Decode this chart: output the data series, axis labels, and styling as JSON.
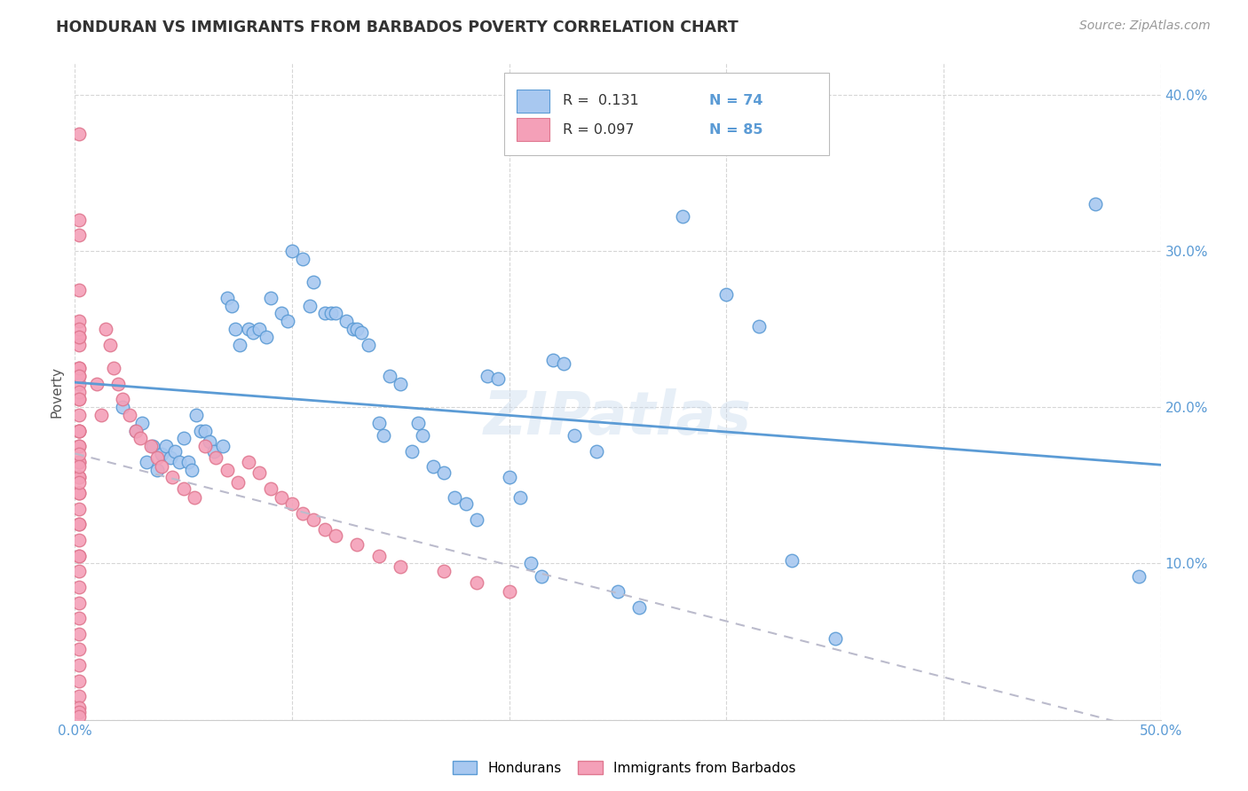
{
  "title": "HONDURAN VS IMMIGRANTS FROM BARBADOS POVERTY CORRELATION CHART",
  "source": "Source: ZipAtlas.com",
  "ylabel": "Poverty",
  "xlim": [
    0.0,
    0.5
  ],
  "ylim": [
    0.0,
    0.42
  ],
  "xticks": [
    0.0,
    0.1,
    0.2,
    0.3,
    0.4,
    0.5
  ],
  "yticks": [
    0.0,
    0.1,
    0.2,
    0.3,
    0.4
  ],
  "color_honduran_fill": "#a8c8f0",
  "color_honduran_edge": "#5b9bd5",
  "color_barbados_fill": "#f4a0b8",
  "color_barbados_edge": "#e07890",
  "color_line_honduran": "#5b9bd5",
  "color_line_barbados": "#ccaabb",
  "color_tick_labels": "#5b9bd5",
  "watermark": "ZIPatlas",
  "legend_r1": "R =  0.131",
  "legend_n1": "N = 74",
  "legend_r2": "R = 0.097",
  "legend_n2": "N = 85",
  "hon_x": [
    0.022,
    0.028,
    0.031,
    0.033,
    0.036,
    0.038,
    0.04,
    0.042,
    0.044,
    0.046,
    0.048,
    0.05,
    0.052,
    0.054,
    0.056,
    0.058,
    0.06,
    0.062,
    0.064,
    0.068,
    0.07,
    0.072,
    0.074,
    0.076,
    0.08,
    0.082,
    0.085,
    0.088,
    0.09,
    0.095,
    0.098,
    0.1,
    0.105,
    0.108,
    0.11,
    0.115,
    0.118,
    0.12,
    0.125,
    0.128,
    0.13,
    0.132,
    0.135,
    0.14,
    0.142,
    0.145,
    0.15,
    0.155,
    0.158,
    0.16,
    0.165,
    0.17,
    0.175,
    0.18,
    0.185,
    0.19,
    0.195,
    0.2,
    0.205,
    0.21,
    0.215,
    0.22,
    0.225,
    0.23,
    0.24,
    0.25,
    0.26,
    0.28,
    0.3,
    0.315,
    0.33,
    0.35,
    0.47,
    0.49
  ],
  "hon_y": [
    0.2,
    0.185,
    0.19,
    0.165,
    0.175,
    0.16,
    0.17,
    0.175,
    0.168,
    0.172,
    0.165,
    0.18,
    0.165,
    0.16,
    0.195,
    0.185,
    0.185,
    0.178,
    0.172,
    0.175,
    0.27,
    0.265,
    0.25,
    0.24,
    0.25,
    0.248,
    0.25,
    0.245,
    0.27,
    0.26,
    0.255,
    0.3,
    0.295,
    0.265,
    0.28,
    0.26,
    0.26,
    0.26,
    0.255,
    0.25,
    0.25,
    0.248,
    0.24,
    0.19,
    0.182,
    0.22,
    0.215,
    0.172,
    0.19,
    0.182,
    0.162,
    0.158,
    0.142,
    0.138,
    0.128,
    0.22,
    0.218,
    0.155,
    0.142,
    0.1,
    0.092,
    0.23,
    0.228,
    0.182,
    0.172,
    0.082,
    0.072,
    0.322,
    0.272,
    0.252,
    0.102,
    0.052,
    0.33,
    0.092
  ],
  "bar_x": [
    0.002,
    0.002,
    0.002,
    0.002,
    0.002,
    0.002,
    0.002,
    0.002,
    0.002,
    0.002,
    0.002,
    0.002,
    0.002,
    0.002,
    0.002,
    0.002,
    0.002,
    0.002,
    0.002,
    0.002,
    0.002,
    0.002,
    0.002,
    0.002,
    0.002,
    0.002,
    0.002,
    0.002,
    0.002,
    0.002,
    0.002,
    0.002,
    0.002,
    0.002,
    0.002,
    0.002,
    0.002,
    0.002,
    0.002,
    0.002,
    0.002,
    0.002,
    0.002,
    0.002,
    0.002,
    0.002,
    0.002,
    0.002,
    0.002,
    0.002,
    0.01,
    0.012,
    0.014,
    0.016,
    0.018,
    0.02,
    0.022,
    0.025,
    0.028,
    0.03,
    0.035,
    0.038,
    0.04,
    0.045,
    0.05,
    0.055,
    0.06,
    0.065,
    0.07,
    0.075,
    0.08,
    0.085,
    0.09,
    0.095,
    0.1,
    0.105,
    0.11,
    0.115,
    0.12,
    0.13,
    0.14,
    0.15,
    0.17,
    0.185,
    0.2
  ],
  "bar_y": [
    0.375,
    0.32,
    0.31,
    0.275,
    0.255,
    0.245,
    0.225,
    0.215,
    0.205,
    0.185,
    0.175,
    0.165,
    0.155,
    0.145,
    0.135,
    0.125,
    0.115,
    0.105,
    0.095,
    0.085,
    0.075,
    0.065,
    0.055,
    0.045,
    0.035,
    0.025,
    0.015,
    0.008,
    0.005,
    0.002,
    0.22,
    0.21,
    0.195,
    0.185,
    0.175,
    0.165,
    0.155,
    0.145,
    0.125,
    0.105,
    0.25,
    0.24,
    0.225,
    0.205,
    0.185,
    0.17,
    0.152,
    0.162,
    0.22,
    0.245,
    0.215,
    0.195,
    0.25,
    0.24,
    0.225,
    0.215,
    0.205,
    0.195,
    0.185,
    0.18,
    0.175,
    0.168,
    0.162,
    0.155,
    0.148,
    0.142,
    0.175,
    0.168,
    0.16,
    0.152,
    0.165,
    0.158,
    0.148,
    0.142,
    0.138,
    0.132,
    0.128,
    0.122,
    0.118,
    0.112,
    0.105,
    0.098,
    0.095,
    0.088,
    0.082
  ]
}
